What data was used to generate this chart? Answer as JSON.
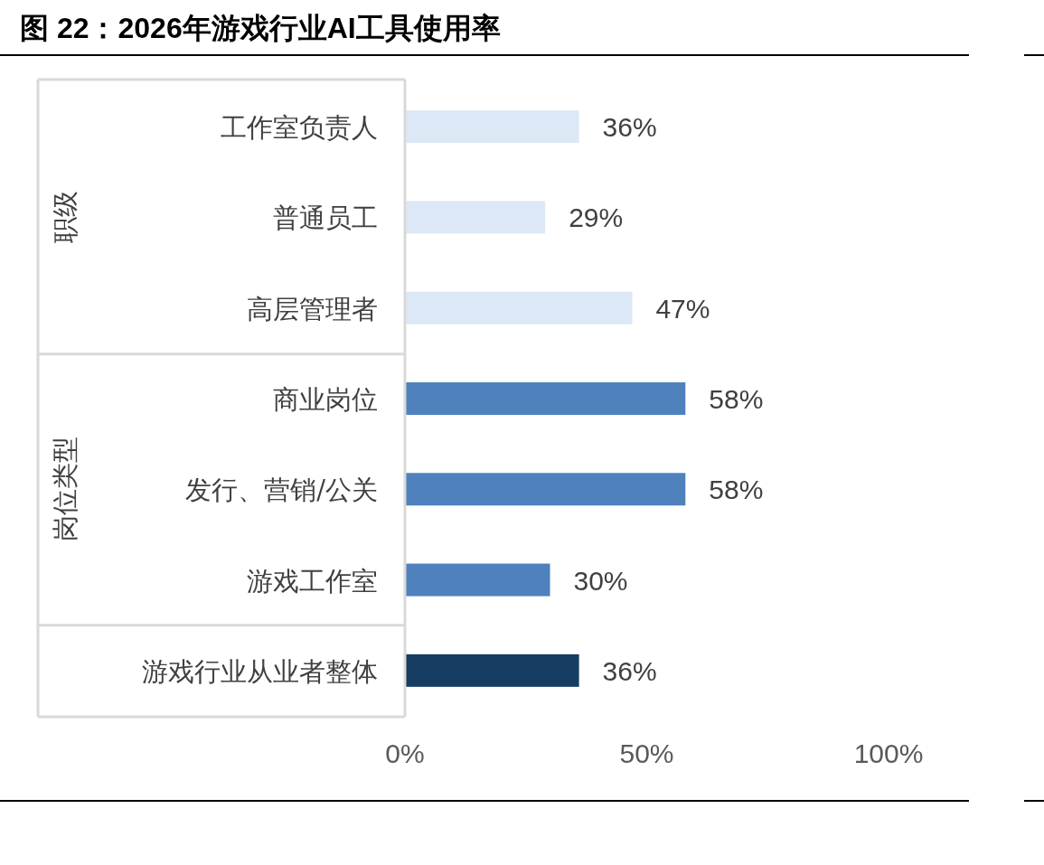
{
  "chart_data": {
    "type": "bar",
    "orientation": "horizontal",
    "title": "图 22：2026年游戏行业AI工具使用率",
    "categories": [
      "工作室负责人",
      "普通员工",
      "高层管理者",
      "商业岗位",
      "发行、营销/公关",
      "游戏工作室",
      "游戏行业从业者整体"
    ],
    "values": [
      36,
      29,
      47,
      58,
      58,
      30,
      36
    ],
    "colors": [
      "#dce8f5",
      "#dce8f5",
      "#dce8f5",
      "#4f81bd",
      "#4f81bd",
      "#4f81bd",
      "#173d63"
    ],
    "value_labels": [
      "36%",
      "29%",
      "47%",
      "58%",
      "58%",
      "30%",
      "36%"
    ],
    "xlim": [
      0,
      100
    ],
    "xticks": [
      {
        "value": 0,
        "label": "0%"
      },
      {
        "value": 50,
        "label": "50%"
      },
      {
        "value": 100,
        "label": "100%"
      }
    ],
    "grid": false,
    "annotations": [
      "职级",
      "岗位类型"
    ]
  }
}
